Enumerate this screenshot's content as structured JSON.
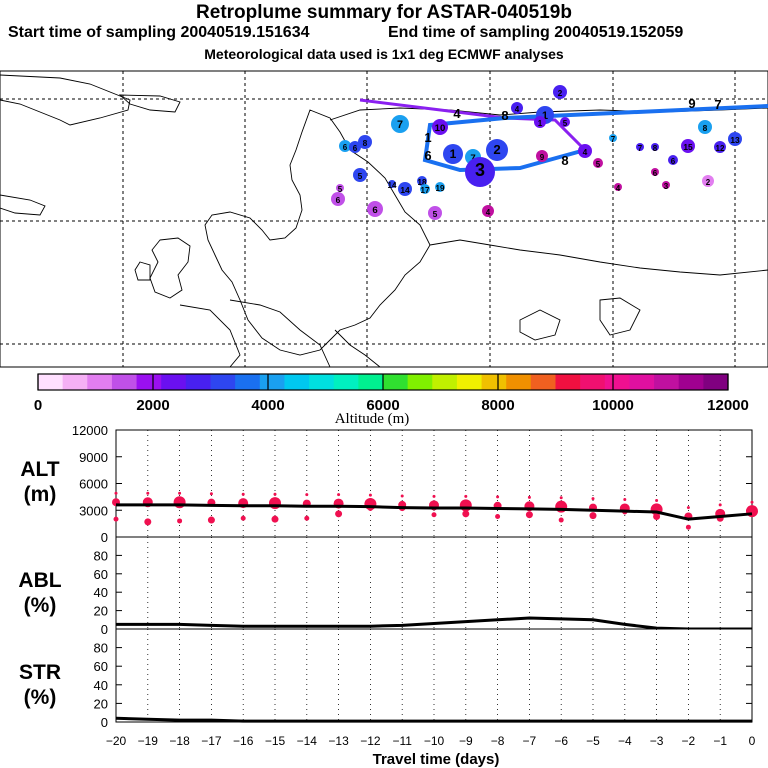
{
  "header": {
    "title": "Retroplume summary for ASTAR-040519b",
    "start": "Start time of sampling 20040519.151634",
    "end": "End time of sampling 20040519.152059",
    "met": "Meteorological data used is 1x1 deg ECMWF analyses"
  },
  "colorbar": {
    "label": "Altitude (m)",
    "ticks": [
      "0",
      "2000",
      "4000",
      "6000",
      "8000",
      "10000",
      "12000"
    ],
    "colors": [
      "#ffe0ff",
      "#f5b0f5",
      "#e27ef0",
      "#c050e8",
      "#9a10f0",
      "#6a10f0",
      "#4820f0",
      "#2e46f0",
      "#1a70f0",
      "#1aa0f0",
      "#00c8f0",
      "#00e0e0",
      "#00f0c0",
      "#00f090",
      "#30e030",
      "#80f000",
      "#c0f000",
      "#f0f000",
      "#f0c000",
      "#f09000",
      "#f06020",
      "#f01040",
      "#f01070",
      "#f01090",
      "#e010a0",
      "#c010a0",
      "#a00090",
      "#800080"
    ]
  },
  "map": {
    "cluster_labels": [
      "1",
      "2",
      "3",
      "4",
      "5",
      "6",
      "7",
      "8",
      "9",
      "10",
      "11",
      "12",
      "13",
      "14",
      "15",
      "16",
      "17",
      "18",
      "19"
    ]
  },
  "chart_data": [
    {
      "type": "line",
      "panel": "ALT",
      "ylabel": "ALT (m)",
      "ylim": [
        0,
        12000
      ],
      "yticks": [
        "12000",
        "9000",
        "6000",
        "3000",
        "0"
      ],
      "x": [
        -20,
        -19,
        -18,
        -17,
        -16,
        -15,
        -14,
        -13,
        -12,
        -11,
        -10,
        -9,
        -8,
        -7,
        -6,
        -5,
        -4,
        -3,
        -2,
        -1,
        0
      ],
      "values": [
        3600,
        3600,
        3600,
        3550,
        3500,
        3500,
        3450,
        3450,
        3400,
        3300,
        3250,
        3250,
        3200,
        3150,
        3100,
        3000,
        2900,
        2800,
        2000,
        2300,
        2600
      ],
      "scatter_low": [
        2000,
        1700,
        1800,
        1900,
        2100,
        2000,
        2100,
        2600,
        3200,
        3300,
        2500,
        2600,
        2300,
        2500,
        1900,
        2400,
        2800,
        2300,
        1100,
        2100,
        2600
      ]
    },
    {
      "type": "line",
      "panel": "ABL",
      "ylabel": "ABL (%)",
      "ylim": [
        0,
        100
      ],
      "yticks": [
        "80",
        "60",
        "40",
        "20",
        "0"
      ],
      "x": [
        -20,
        -19,
        -18,
        -17,
        -16,
        -15,
        -14,
        -13,
        -12,
        -11,
        -10,
        -9,
        -8,
        -7,
        -6,
        -5,
        -4,
        -3,
        -2,
        -1,
        0
      ],
      "values": [
        5,
        5,
        5,
        4,
        3,
        3,
        3,
        3,
        3,
        4,
        6,
        8,
        10,
        12,
        11,
        10,
        5,
        1,
        0,
        0,
        0
      ]
    },
    {
      "type": "line",
      "panel": "STR",
      "ylabel": "STR (%)",
      "ylim": [
        0,
        100
      ],
      "yticks": [
        "80",
        "60",
        "40",
        "20",
        "0"
      ],
      "x": [
        -20,
        -19,
        -18,
        -17,
        -16,
        -15,
        -14,
        -13,
        -12,
        -11,
        -10,
        -9,
        -8,
        -7,
        -6,
        -5,
        -4,
        -3,
        -2,
        -1,
        0
      ],
      "values": [
        4,
        3,
        2,
        2,
        1,
        1,
        1,
        1,
        1,
        1,
        1,
        1,
        1,
        1,
        1,
        1,
        1,
        1,
        1,
        1,
        1
      ]
    }
  ],
  "xaxis": {
    "label": "Travel time (days)",
    "ticks": [
      "−20",
      "−19",
      "−18",
      "−17",
      "−16",
      "−15",
      "−14",
      "−13",
      "−12",
      "−11",
      "−10",
      "−9",
      "−8",
      "−7",
      "−6",
      "−5",
      "−4",
      "−3",
      "−2",
      "−1",
      "0"
    ]
  }
}
